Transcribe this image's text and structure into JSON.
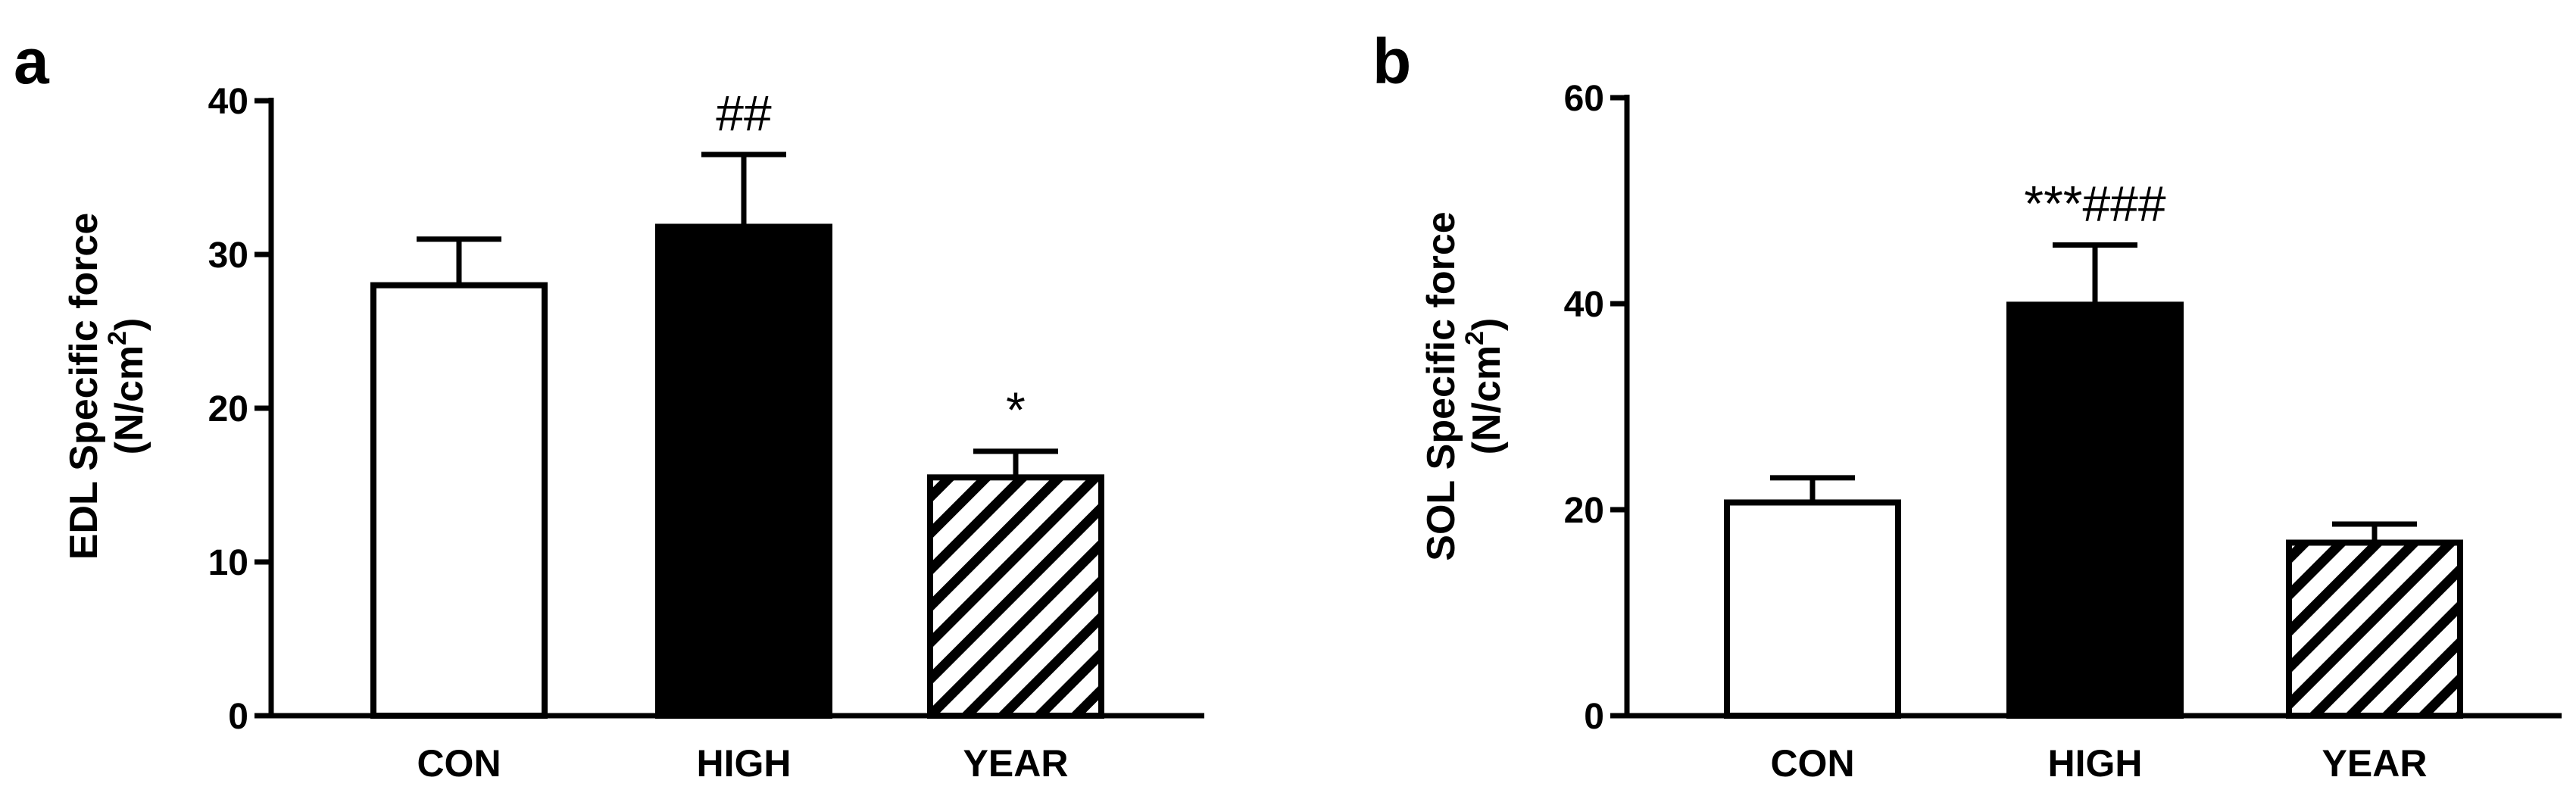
{
  "colors": {
    "ink": "#000000",
    "background": "#ffffff"
  },
  "chart_data": [
    {
      "type": "bar",
      "panel": "a",
      "categories": [
        "CON",
        "HIGH",
        "YEAR"
      ],
      "values": [
        28.0,
        31.8,
        15.5
      ],
      "errors": [
        3.0,
        4.7,
        1.7
      ],
      "ylabel": {
        "line1": "EDL Specific force",
        "line2_prefix": "(N/cm",
        "line2_sup": "2",
        "line2_suffix": ")"
      },
      "ylim": [
        0,
        40
      ],
      "yticks": [
        0,
        10,
        20,
        30,
        40
      ],
      "fills": [
        "white",
        "black",
        "hatch"
      ],
      "annotations": [
        "",
        "##",
        "*"
      ],
      "grid": false
    },
    {
      "type": "bar",
      "panel": "b",
      "categories": [
        "CON",
        "HIGH",
        "YEAR"
      ],
      "values": [
        20.7,
        39.9,
        16.8
      ],
      "errors": [
        2.4,
        5.8,
        1.8
      ],
      "ylabel": {
        "line1": "SOL Specific force",
        "line2_prefix": "(N/cm",
        "line2_sup": "2",
        "line2_suffix": ")"
      },
      "ylim": [
        0,
        60
      ],
      "yticks": [
        0,
        20,
        40,
        60
      ],
      "fills": [
        "white",
        "black",
        "hatch"
      ],
      "annotations": [
        "",
        "***###",
        ""
      ],
      "grid": false
    }
  ]
}
